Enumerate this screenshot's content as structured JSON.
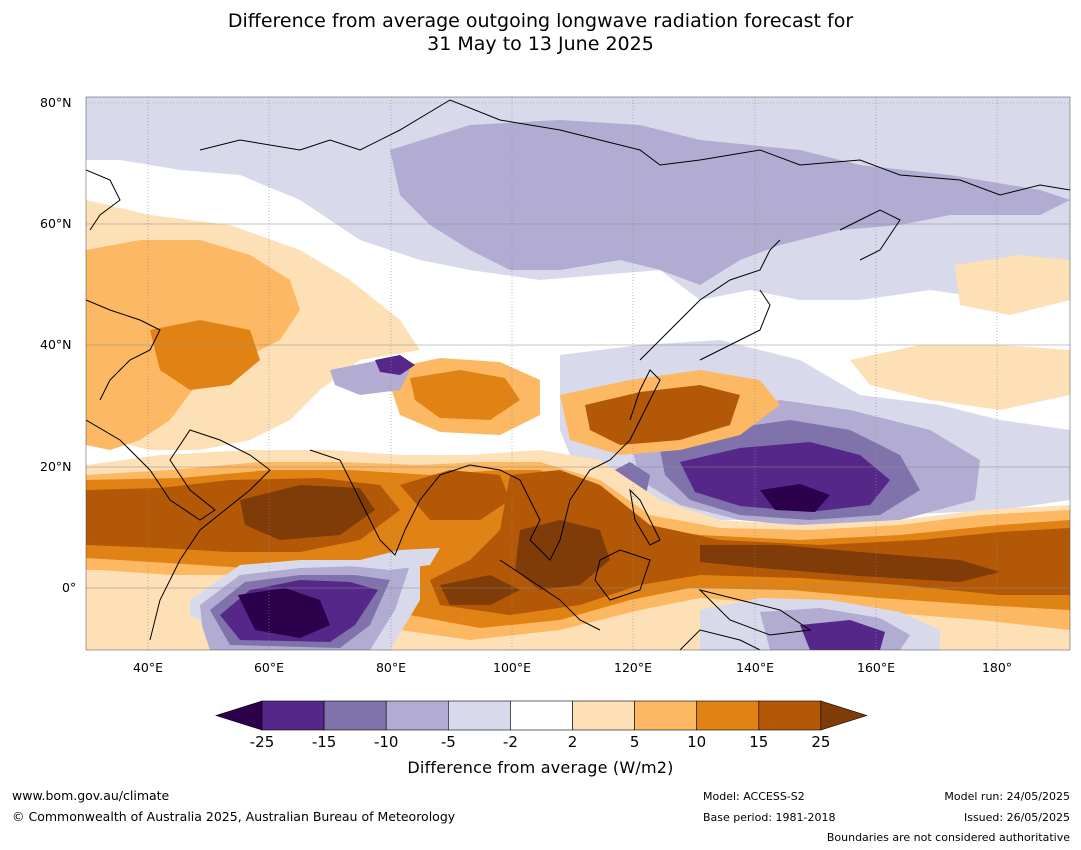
{
  "title": {
    "line1": "Difference from average outgoing longwave radiation forecast for",
    "line2": "31 May to 13 June 2025"
  },
  "map": {
    "lat_labels": [
      "80°N",
      "60°N",
      "40°N",
      "20°N",
      "0°"
    ],
    "lon_labels": [
      "40°E",
      "60°E",
      "80°E",
      "100°E",
      "120°E",
      "140°E",
      "160°E",
      "180°"
    ],
    "colors": {
      "lt_-25": "#2d004b",
      "-25_-15": "#542788",
      "-15_-10": "#8073ac",
      "-10_-5": "#b2abd2",
      "-5_-2": "#d8daeb",
      "-2_2": "#ffffff",
      "2_5": "#fee0b6",
      "5_10": "#fdb863",
      "10_15": "#e08214",
      "15_25": "#b35806",
      "gt_25": "#7f3b08"
    }
  },
  "colorbar": {
    "ticks": [
      "-25",
      "-15",
      "-10",
      "-5",
      "-2",
      "2",
      "5",
      "10",
      "15",
      "25"
    ],
    "colors": [
      "#542788",
      "#8073ac",
      "#b2abd2",
      "#d8daeb",
      "#ffffff",
      "#fee0b6",
      "#fdb863",
      "#e08214",
      "#b35806"
    ],
    "under_color": "#2d004b",
    "over_color": "#7f3b08",
    "label": "Difference from average (W/m2)"
  },
  "footer": {
    "website": "www.bom.gov.au/climate",
    "copyright": "© Commonwealth of Australia 2025, Australian Bureau of Meteorology",
    "model": "Model: ACCESS-S2",
    "base_period": "Base period: 1981-2018",
    "model_run": "Model run: 24/05/2025",
    "issued": "Issued: 26/05/2025",
    "disclaimer": "Boundaries are not considered authoritative"
  }
}
